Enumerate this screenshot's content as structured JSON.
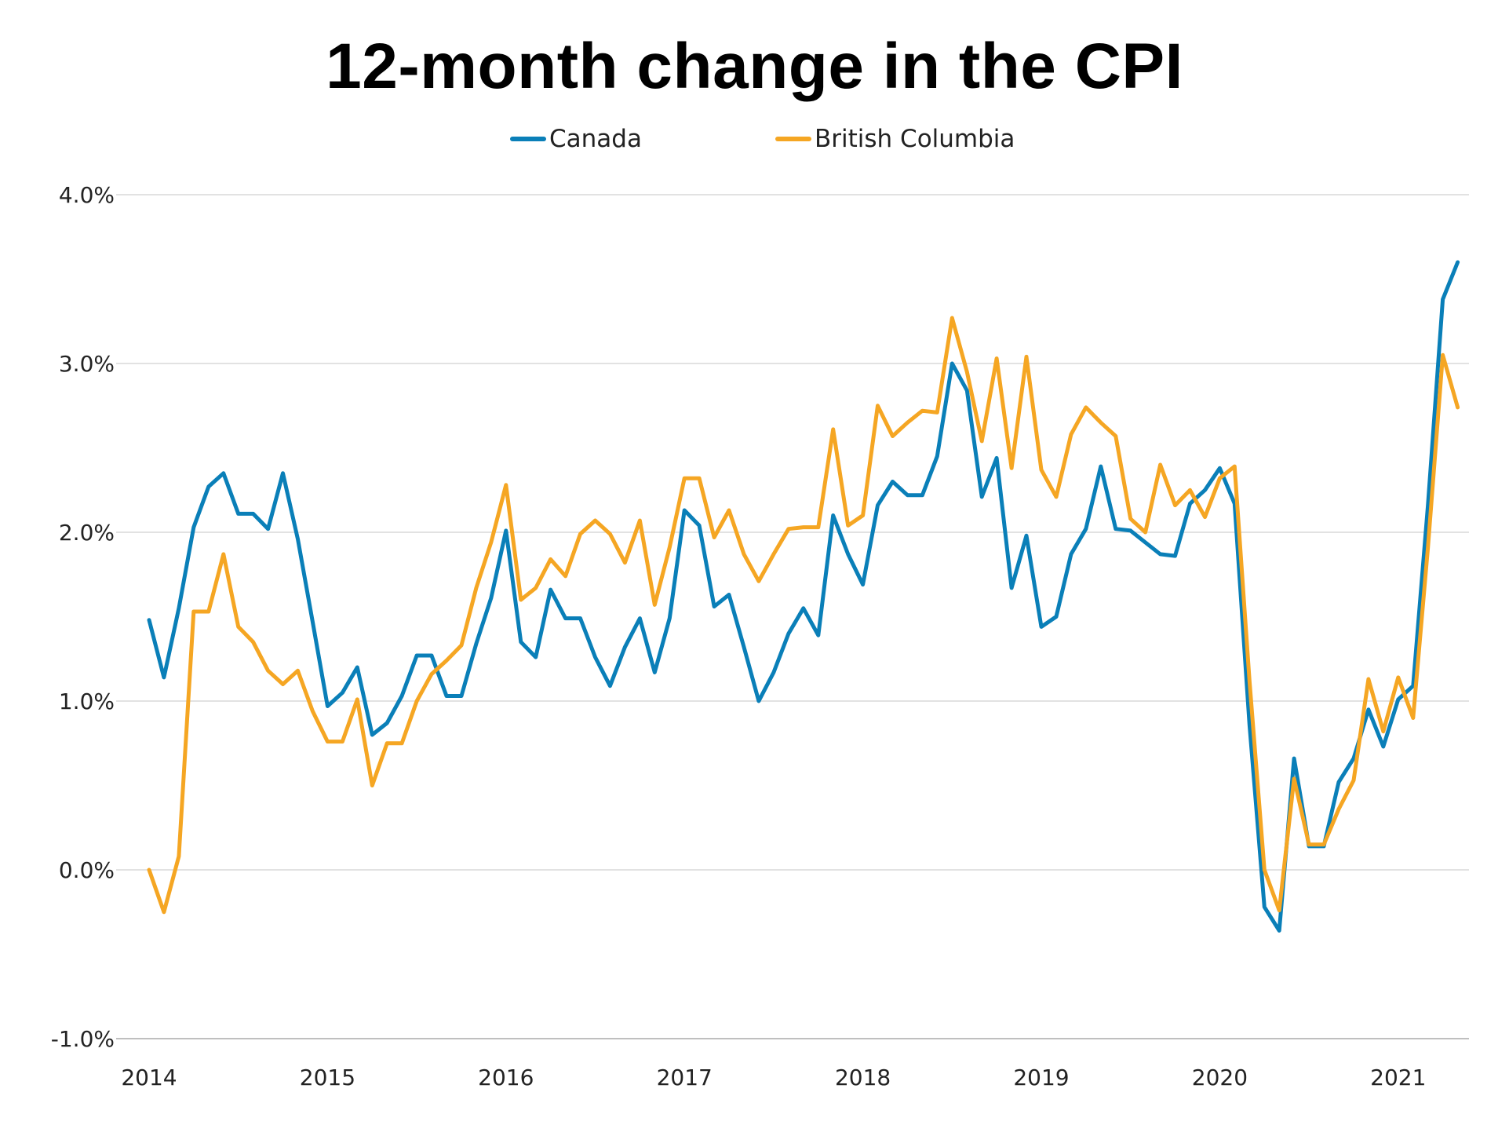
{
  "chart_data": {
    "type": "line",
    "title": "12-month change in the CPI",
    "xlabel": "",
    "ylabel": "",
    "ylim": [
      -1.0,
      4.0
    ],
    "y_ticks": [
      "4.0%",
      "3.0%",
      "2.0%",
      "1.0%",
      "0.0%",
      "-1.0%"
    ],
    "x_ticks": [
      "2014",
      "2015",
      "2016",
      "2017",
      "2018",
      "2019",
      "2020",
      "2021"
    ],
    "grid": "horizontal",
    "legend_position": "top-center",
    "x_start": "2014-01",
    "x_end": "2021-05",
    "series": [
      {
        "name": "Canada",
        "color": "#0A7FB8",
        "values": [
          1.48,
          1.14,
          1.55,
          2.03,
          2.27,
          2.35,
          2.11,
          2.11,
          2.02,
          2.35,
          1.96,
          1.47,
          0.97,
          1.05,
          1.2,
          0.8,
          0.87,
          1.03,
          1.27,
          1.27,
          1.03,
          1.03,
          1.34,
          1.61,
          2.01,
          1.35,
          1.26,
          1.66,
          1.49,
          1.49,
          1.26,
          1.09,
          1.32,
          1.49,
          1.17,
          1.49,
          2.13,
          2.04,
          1.56,
          1.63,
          1.32,
          1.0,
          1.17,
          1.4,
          1.55,
          1.39,
          2.1,
          1.87,
          1.69,
          2.16,
          2.3,
          2.22,
          2.22,
          2.45,
          3.0,
          2.84,
          2.21,
          2.44,
          1.67,
          1.98,
          1.44,
          1.5,
          1.87,
          2.02,
          2.39,
          2.02,
          2.01,
          1.94,
          1.87,
          1.86,
          2.17,
          2.25,
          2.38,
          2.17,
          0.86,
          -0.22,
          -0.36,
          0.66,
          0.14,
          0.14,
          0.52,
          0.66,
          0.95,
          0.73,
          1.01,
          1.09,
          2.16,
          3.38,
          3.6
        ]
      },
      {
        "name": "British Columbia",
        "color": "#F5A623",
        "values": [
          0.0,
          -0.25,
          0.08,
          1.53,
          1.53,
          1.87,
          1.44,
          1.35,
          1.18,
          1.1,
          1.18,
          0.94,
          0.76,
          0.76,
          1.01,
          0.5,
          0.75,
          0.75,
          1.0,
          1.16,
          1.24,
          1.33,
          1.67,
          1.94,
          2.28,
          1.6,
          1.67,
          1.84,
          1.74,
          1.99,
          2.07,
          1.99,
          1.82,
          2.07,
          1.57,
          1.91,
          2.32,
          2.32,
          1.97,
          2.13,
          1.87,
          1.71,
          1.87,
          2.02,
          2.03,
          2.03,
          2.61,
          2.04,
          2.1,
          2.75,
          2.57,
          2.65,
          2.72,
          2.71,
          3.27,
          2.95,
          2.54,
          3.03,
          2.38,
          3.04,
          2.37,
          2.21,
          2.58,
          2.74,
          2.65,
          2.57,
          2.08,
          2.0,
          2.4,
          2.16,
          2.25,
          2.09,
          2.32,
          2.39,
          1.12,
          0.0,
          -0.24,
          0.54,
          0.15,
          0.15,
          0.36,
          0.53,
          1.13,
          0.82,
          1.14,
          0.9,
          1.91,
          3.05,
          2.74
        ]
      }
    ]
  }
}
